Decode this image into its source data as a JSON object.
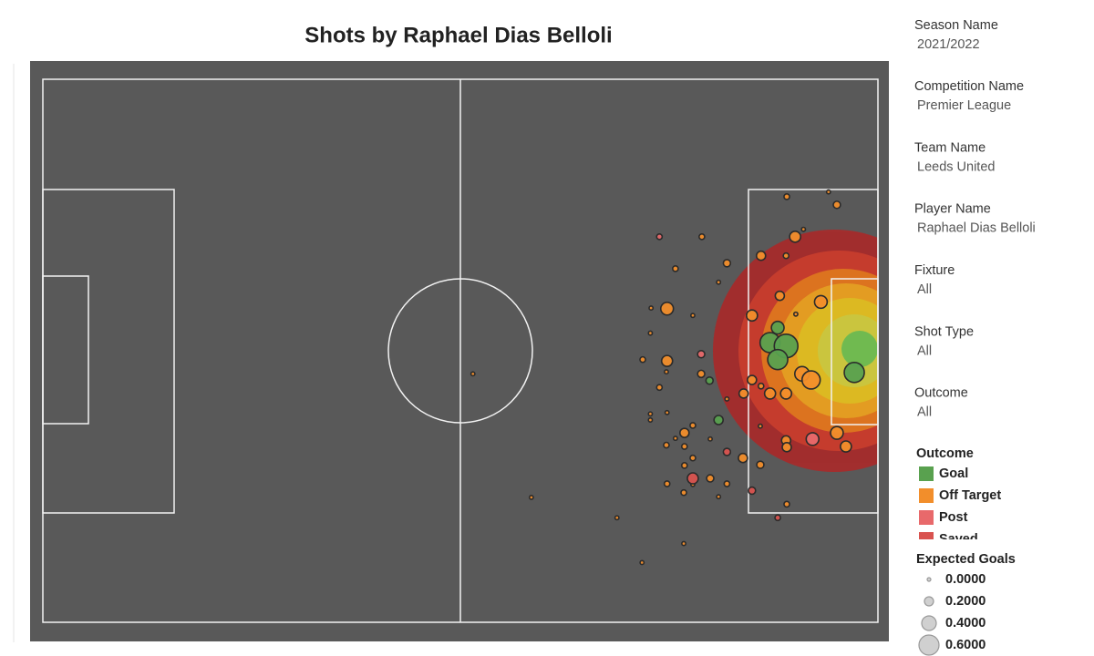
{
  "chart_data": {
    "type": "scatter",
    "title": "Shots by Raphael Dias Belloli",
    "xlim": [
      0,
      120
    ],
    "ylim": [
      0,
      80
    ],
    "legend_title": "Outcome",
    "series": [
      {
        "name": "Goal",
        "color": "#59a14f",
        "x": [
          105.6,
          104.5,
          106.8,
          105.6,
          116.6,
          95.8,
          97.1
        ],
        "values": [
          36.6,
          38.8,
          39.3,
          41.3,
          43.2,
          44.4,
          50.2
        ],
        "sizes": [
          0.33,
          0.6,
          0.73,
          0.6,
          0.6,
          0.13,
          0.2
        ]
      },
      {
        "name": "Off Target",
        "color": "#f28e2b",
        "x": [
          106.9,
          114.1,
          108.1,
          103.2,
          106.8,
          94.7,
          98.3,
          90.9,
          89.7,
          101.9,
          105.9,
          111.8,
          108.2,
          87.4,
          87.3,
          86.2,
          89.7,
          89.6,
          94.6,
          101.9,
          103.2,
          100.7,
          104.5,
          106.8,
          109.1,
          110.4,
          88.6,
          87.3,
          87.3,
          89.7,
          90.9,
          93.4,
          92.2,
          92.2,
          89.6,
          93.4,
          92.2,
          95.9,
          100.6,
          103.1,
          95.9,
          89.7,
          93.4,
          98.3,
          92.1,
          97.1,
          106.8,
          106.9,
          114.1,
          115.4,
          106.9,
          70.2,
          82.5,
          92.1,
          86.1,
          61.8,
          98.3,
          93.4,
          109.3,
          112.9,
          103.1,
          97.1
        ],
        "values": [
          17.3,
          18.5,
          23.2,
          26.0,
          26.0,
          23.2,
          27.1,
          27.9,
          33.8,
          34.8,
          31.9,
          32.8,
          34.6,
          33.7,
          37.4,
          41.3,
          41.5,
          43.1,
          43.4,
          44.3,
          45.2,
          46.3,
          46.3,
          46.3,
          43.4,
          44.3,
          45.4,
          49.3,
          50.2,
          49.1,
          52.9,
          51.0,
          52.1,
          54.1,
          53.9,
          55.8,
          56.9,
          53.0,
          55.8,
          56.8,
          58.8,
          59.6,
          59.7,
          59.6,
          60.9,
          61.5,
          53.2,
          54.2,
          52.1,
          54.1,
          62.6,
          61.6,
          64.6,
          68.4,
          71.2,
          43.4,
          47.1,
          34.8,
          22.1,
          16.6,
          51.1,
          29.9
        ],
        "sizes": [
          0.07,
          0.13,
          0.27,
          0.2,
          0.07,
          0.07,
          0.13,
          0.07,
          0.33,
          0.27,
          0.2,
          0.33,
          0.01,
          0.01,
          0.01,
          0.07,
          0.27,
          0.01,
          0.13,
          0.2,
          0.07,
          0.2,
          0.27,
          0.27,
          0.4,
          0.53,
          0.07,
          0.01,
          0.01,
          0.01,
          0.01,
          0.07,
          0.2,
          0.07,
          0.07,
          0.07,
          0.07,
          0.01,
          0.2,
          0.13,
          0.13,
          0.07,
          0.01,
          0.07,
          0.07,
          0.01,
          0.2,
          0.2,
          0.33,
          0.27,
          0.07,
          0.01,
          0.01,
          0.01,
          0.01,
          0.01,
          0.01,
          0.01,
          0.01,
          0.01,
          0.01,
          0.01
        ]
      },
      {
        "name": "Post",
        "color": "#e8696b",
        "x": [
          88.6,
          94.6,
          110.6
        ],
        "values": [
          23.2,
          40.5,
          53.0
        ],
        "sizes": [
          0.07,
          0.13,
          0.33
        ]
      },
      {
        "name": "Saved",
        "color": "#d9534f",
        "x": [
          93.4,
          98.3,
          101.9,
          105.6
        ],
        "values": [
          58.8,
          54.9,
          60.6,
          64.6
        ],
        "sizes": [
          0.27,
          0.13,
          0.13,
          0.07
        ]
      }
    ],
    "size_legend": {
      "title": "Expected Goals",
      "ticks": [
        {
          "value": 0,
          "label": "0.0000"
        },
        {
          "value": 0.2,
          "label": "0.2000"
        },
        {
          "value": 0.4,
          "label": "0.4000"
        },
        {
          "value": 0.6,
          "label": "0.6000"
        }
      ]
    }
  },
  "filters": [
    {
      "label": "Season Name",
      "value": "2021/2022"
    },
    {
      "label": "Competition Name",
      "value": "Premier League"
    },
    {
      "label": "Team Name",
      "value": "Leeds United"
    },
    {
      "label": "Player Name",
      "value": "Raphael Dias Belloli"
    },
    {
      "label": "Fixture",
      "value": "All"
    },
    {
      "label": "Shot Type",
      "value": "All"
    },
    {
      "label": "Outcome",
      "value": "All"
    }
  ]
}
